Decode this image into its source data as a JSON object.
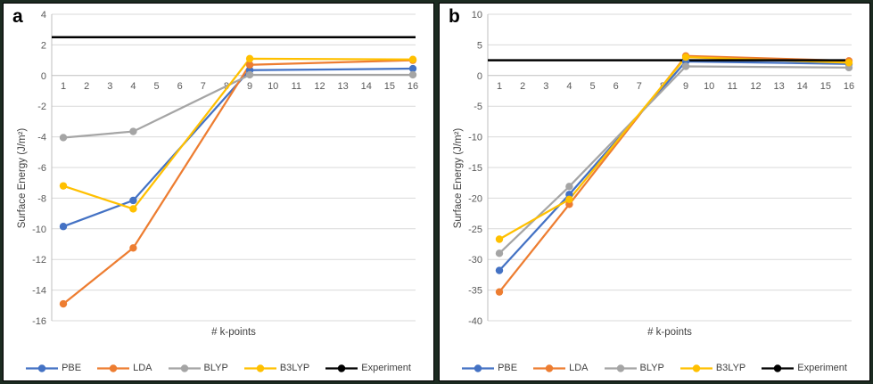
{
  "panels": [
    {
      "label": "a"
    },
    {
      "label": "b"
    }
  ],
  "colors": {
    "gridline": "#D9D9D9",
    "axis_line": "#BFBFBF",
    "tick_label": "#595959",
    "axis_title": "#404040",
    "legend_text": "#404040",
    "panel_border": "#000000",
    "panel_background": "#FFFFFF",
    "frame_background": "#1C2B21",
    "series_pbe": "#4472C4",
    "series_lda": "#ED7D31",
    "series_blyp": "#A5A5A5",
    "series_b3lyp": "#FFC000",
    "series_experiment": "#000000"
  },
  "chart_data": [
    {
      "type": "line",
      "panel": "a",
      "xlabel": "# k-points",
      "ylabel": "Surface Energy (J/m²)",
      "x_categories": [
        1,
        2,
        3,
        4,
        5,
        6,
        7,
        8,
        9,
        10,
        11,
        12,
        13,
        14,
        15,
        16
      ],
      "x": [
        1,
        4,
        9,
        16
      ],
      "ylim": [
        -16,
        4
      ],
      "ytick_step": 2,
      "grid": true,
      "legend_position": "bottom",
      "series": [
        {
          "name": "PBE",
          "color": "#4472C4",
          "values": [
            -9.85,
            -8.15,
            0.35,
            0.45
          ]
        },
        {
          "name": "LDA",
          "color": "#ED7D31",
          "values": [
            -14.9,
            -11.25,
            0.7,
            1.0
          ]
        },
        {
          "name": "BLYP",
          "color": "#A5A5A5",
          "values": [
            -4.05,
            -3.65,
            0.05,
            0.05
          ]
        },
        {
          "name": "B3LYP",
          "color": "#FFC000",
          "values": [
            -7.2,
            -8.7,
            1.1,
            1.05
          ]
        },
        {
          "name": "Experiment",
          "color": "#000000",
          "style": "hline",
          "value": 2.5
        }
      ]
    },
    {
      "type": "line",
      "panel": "b",
      "xlabel": "# k-points",
      "ylabel": "Surface Energy (J/m²)",
      "x_categories": [
        1,
        2,
        3,
        4,
        5,
        6,
        7,
        8,
        9,
        10,
        11,
        12,
        13,
        14,
        15,
        16
      ],
      "x": [
        1,
        4,
        9,
        16
      ],
      "ylim": [
        -40,
        10
      ],
      "ytick_step": 5,
      "grid": true,
      "legend_position": "bottom",
      "series": [
        {
          "name": "PBE",
          "color": "#4472C4",
          "values": [
            -31.8,
            -19.4,
            2.3,
            1.9
          ]
        },
        {
          "name": "LDA",
          "color": "#ED7D31",
          "values": [
            -35.3,
            -21.0,
            3.2,
            2.4
          ]
        },
        {
          "name": "BLYP",
          "color": "#A5A5A5",
          "values": [
            -29.0,
            -18.1,
            1.5,
            1.3
          ]
        },
        {
          "name": "B3LYP",
          "color": "#FFC000",
          "values": [
            -26.7,
            -20.2,
            3.0,
            2.1
          ]
        },
        {
          "name": "Experiment",
          "color": "#000000",
          "style": "hline",
          "value": 2.5
        }
      ]
    }
  ]
}
